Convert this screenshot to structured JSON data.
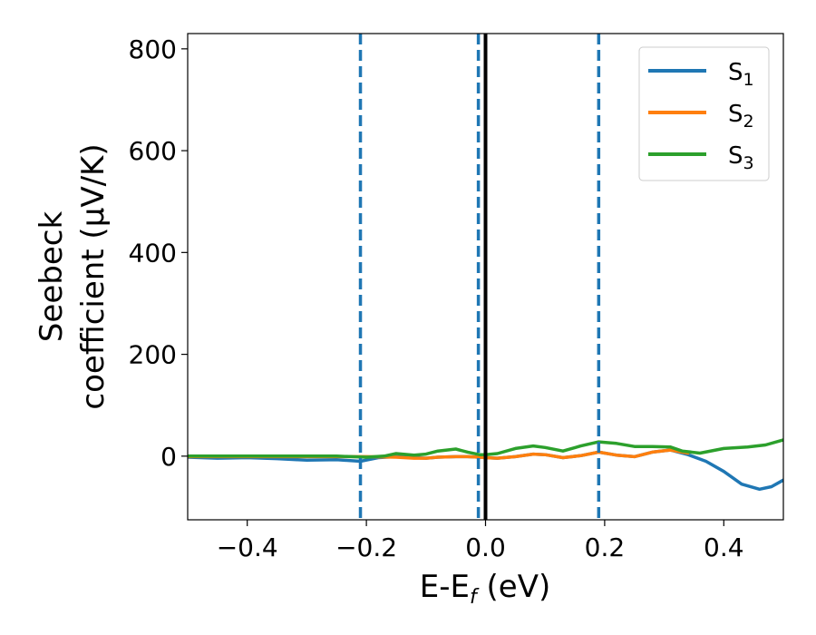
{
  "chart_data": {
    "type": "line",
    "xlabel": "E-E",
    "xlabel_sub": "f",
    "xlabel_unit": " (eV)",
    "ylabel_line1": "Seebeck",
    "ylabel_line2": "coefficient  (μV/K)",
    "xlim": [
      -0.5,
      0.5
    ],
    "ylim": [
      -125,
      830
    ],
    "xticks": [
      -0.4,
      -0.2,
      0.0,
      0.2,
      0.4
    ],
    "xtick_labels": [
      "−0.4",
      "−0.2",
      "0.0",
      "0.2",
      "0.4"
    ],
    "yticks": [
      0,
      200,
      400,
      600,
      800
    ],
    "ytick_labels": [
      "0",
      "200",
      "400",
      "600",
      "800"
    ],
    "grid": false,
    "legend_position": "top-right",
    "vlines": [
      {
        "x": -0.21,
        "style": "dashed",
        "color": "#1f77b4"
      },
      {
        "x": -0.012,
        "style": "dashed",
        "color": "#1f77b4"
      },
      {
        "x": 0.19,
        "style": "dashed",
        "color": "#1f77b4"
      },
      {
        "x": 0.0,
        "style": "solid",
        "color": "#000000"
      }
    ],
    "series": [
      {
        "name": "S",
        "sub": "1",
        "color": "#1f77b4",
        "x": [
          -0.5,
          -0.45,
          -0.4,
          -0.35,
          -0.3,
          -0.25,
          -0.21,
          -0.18,
          -0.15,
          -0.12,
          -0.1,
          -0.08,
          -0.05,
          -0.03,
          -0.01,
          0.0,
          0.02,
          0.05,
          0.08,
          0.1,
          0.13,
          0.16,
          0.19,
          0.22,
          0.25,
          0.28,
          0.31,
          0.34,
          0.37,
          0.4,
          0.43,
          0.46,
          0.48,
          0.5
        ],
        "y": [
          -2,
          -4,
          -3,
          -5,
          -8,
          -7,
          -10,
          -3,
          -1,
          -3,
          -4,
          -2,
          -1,
          -1,
          -2,
          -3,
          -4,
          -1,
          4,
          3,
          -3,
          1,
          8,
          2,
          -1,
          8,
          12,
          3,
          -10,
          -30,
          -55,
          -65,
          -60,
          -47
        ]
      },
      {
        "name": "S",
        "sub": "2",
        "color": "#ff7f0e",
        "x": [
          -0.5,
          -0.45,
          -0.4,
          -0.35,
          -0.3,
          -0.25,
          -0.2,
          -0.15,
          -0.12,
          -0.1,
          -0.08,
          -0.05,
          -0.03,
          -0.01,
          0.0,
          0.02,
          0.05,
          0.08,
          0.1,
          0.13,
          0.16,
          0.19,
          0.22,
          0.25,
          0.28,
          0.31,
          0.34
        ],
        "y": [
          -1,
          -1,
          -1,
          -1,
          -1,
          -1,
          -1,
          -2,
          -4,
          -4,
          -2,
          -1,
          -1,
          -2,
          -3,
          -4,
          -1,
          4,
          3,
          -3,
          1,
          8,
          2,
          -1,
          8,
          12,
          6
        ]
      },
      {
        "name": "S",
        "sub": "3",
        "color": "#2ca02c",
        "x": [
          -0.5,
          -0.45,
          -0.4,
          -0.35,
          -0.3,
          -0.25,
          -0.2,
          -0.17,
          -0.15,
          -0.12,
          -0.1,
          -0.08,
          -0.05,
          -0.03,
          -0.01,
          0.0,
          0.02,
          0.05,
          0.08,
          0.1,
          0.13,
          0.16,
          0.19,
          0.22,
          0.25,
          0.28,
          0.31,
          0.33,
          0.36,
          0.4,
          0.44,
          0.47,
          0.5
        ],
        "y": [
          0,
          0,
          0,
          0,
          0,
          0,
          -2,
          0,
          5,
          2,
          4,
          10,
          14,
          8,
          3,
          3,
          5,
          15,
          20,
          17,
          10,
          20,
          28,
          25,
          19,
          19,
          18,
          10,
          6,
          15,
          18,
          22,
          32
        ]
      }
    ]
  }
}
